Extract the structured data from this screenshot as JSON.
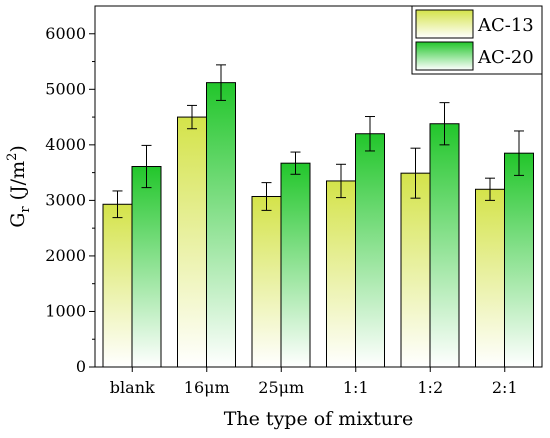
{
  "chart_data": {
    "type": "bar",
    "title": "",
    "xlabel": "The type of mixture",
    "ylabel": {
      "base": "G",
      "sub": "r",
      "rest": " (J/m",
      "sup": "2",
      "end": ")"
    },
    "ylim": [
      0,
      6500
    ],
    "yticks": [
      0,
      1000,
      2000,
      3000,
      4000,
      5000,
      6000
    ],
    "categories": [
      "blank",
      "16μm",
      "25μm",
      "1:1",
      "1:2",
      "2:1"
    ],
    "series": [
      {
        "name": "AC-13",
        "values": [
          2930,
          4500,
          3070,
          3350,
          3490,
          3200
        ],
        "errors": [
          240,
          210,
          250,
          300,
          450,
          200
        ],
        "color_top": "#d4e34a",
        "color_bottom": "#ffffff"
      },
      {
        "name": "AC-20",
        "values": [
          3610,
          5120,
          3670,
          4200,
          4380,
          3850
        ],
        "errors": [
          380,
          320,
          200,
          310,
          380,
          400
        ],
        "color_top": "#22c62b",
        "color_bottom": "#ffffff"
      }
    ],
    "legend": "top-right",
    "grid": false
  }
}
